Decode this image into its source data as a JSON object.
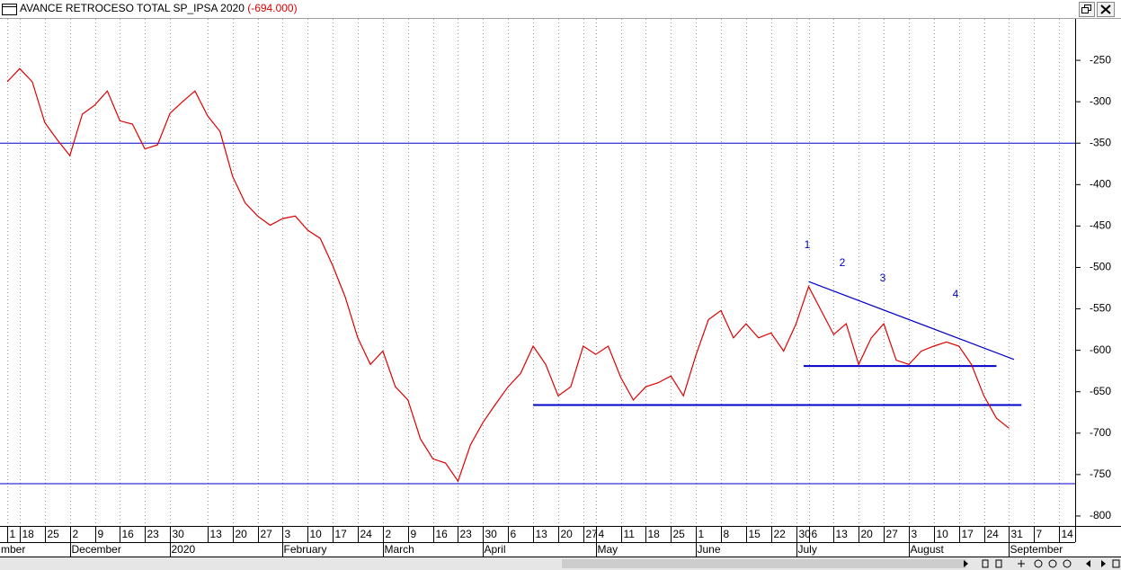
{
  "chart_data": {
    "type": "line",
    "title": "AVANCE RETROCESO TOTAL SP_IPSA 2020",
    "last_value_label": "(-694.000)",
    "categories": [
      "1",
      "18",
      null,
      "25",
      null,
      "2",
      null,
      "9",
      null,
      "16",
      null,
      "23",
      null,
      "30",
      null,
      null,
      "13",
      null,
      "20",
      null,
      "27",
      null,
      "3",
      null,
      "10",
      null,
      "17",
      null,
      "24",
      null,
      "2",
      null,
      "9",
      null,
      "16",
      null,
      "23",
      null,
      "30",
      null,
      "6",
      null,
      "13",
      null,
      "20",
      null,
      "27",
      "4",
      null,
      "11",
      null,
      "18",
      null,
      "25",
      null,
      "1",
      null,
      "8",
      null,
      "15",
      null,
      "22",
      null,
      "30",
      "6",
      null,
      "13",
      null,
      "20",
      null,
      "27",
      null,
      "3",
      null,
      "10",
      null,
      "17",
      null,
      "24",
      null,
      "31",
      null,
      "7",
      null,
      "14",
      null
    ],
    "month_categories": [
      "mber",
      null,
      null,
      null,
      null,
      "December",
      null,
      null,
      null,
      null,
      null,
      null,
      null,
      "2020",
      null,
      null,
      null,
      null,
      null,
      null,
      null,
      null,
      "February",
      null,
      null,
      null,
      null,
      null,
      null,
      null,
      "March",
      null,
      null,
      null,
      null,
      null,
      null,
      null,
      "April",
      null,
      null,
      null,
      null,
      null,
      null,
      null,
      null,
      "May",
      null,
      null,
      null,
      null,
      null,
      null,
      null,
      "June",
      null,
      null,
      null,
      null,
      null,
      null,
      null,
      "July",
      null,
      null,
      null,
      null,
      null,
      null,
      null,
      null,
      "August",
      null,
      null,
      null,
      null,
      null,
      null,
      null,
      "September",
      null,
      null,
      null,
      null,
      null
    ],
    "series": [
      {
        "color": "#e00000",
        "values": [
          -276,
          -260,
          -276,
          -325,
          -346,
          -365,
          -315,
          -304,
          -287,
          -323,
          -327,
          -357,
          -352,
          -314,
          -300,
          -287,
          -317,
          -336,
          -390,
          -422,
          -438,
          -449,
          -441,
          -438,
          -455,
          -465,
          -498,
          -536,
          -585,
          -617,
          -601,
          -644,
          -660,
          -707,
          -731,
          -736,
          -758,
          -714,
          -687,
          -665,
          -644,
          -628,
          -595,
          -617,
          -655,
          -644,
          -595,
          -605,
          -595,
          -633,
          -660,
          -644,
          -639,
          -631,
          -655,
          -606,
          -563,
          -552,
          -585,
          -568,
          -585,
          -579,
          -601,
          -568,
          -523,
          -552,
          -581,
          -568,
          -617,
          -585,
          -568,
          -612,
          -617,
          -601,
          -595,
          -590,
          -595,
          -617,
          -655,
          -682,
          -694,
          null,
          null,
          null,
          null,
          null
        ]
      }
    ],
    "horizontal_lines": [
      -350,
      -761
    ],
    "segments": [
      {
        "x": [
          42,
          81
        ],
        "y": [
          -666,
          -666
        ]
      },
      {
        "x": [
          63.6,
          79
        ],
        "y": [
          -619,
          -619
        ]
      },
      {
        "x": [
          64,
          80.4
        ],
        "y": [
          -517,
          -611
        ]
      }
    ],
    "line_color": "#0000c8",
    "wave_labels": [
      "1",
      "2",
      "3",
      "4"
    ],
    "ylim": [
      -812,
      -200
    ],
    "yticks": [
      -250,
      -300,
      -350,
      -400,
      -450,
      -500,
      -550,
      -600,
      -650,
      -700,
      -750,
      -800
    ],
    "grid": true
  }
}
